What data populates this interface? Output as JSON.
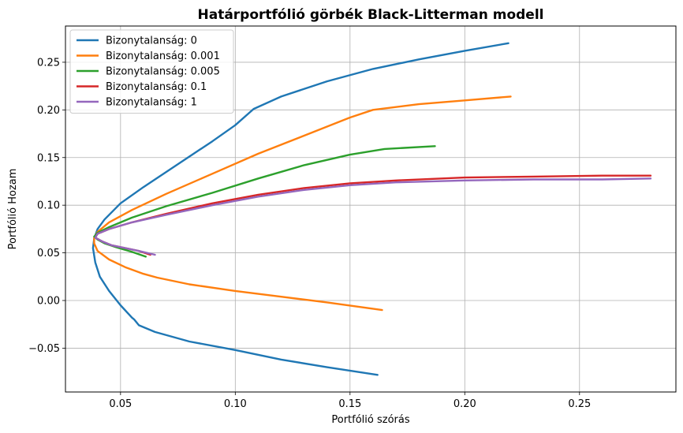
{
  "chart_data": {
    "type": "line",
    "title": "Határportfólió görbék Black-Litterman modell",
    "xlabel": "Portfólió szórás",
    "ylabel": "Portfólió Hozam",
    "xlim": [
      0.026,
      0.292
    ],
    "ylim": [
      -0.096,
      0.288
    ],
    "xticks": [
      {
        "value": 0.05,
        "label": "0.05"
      },
      {
        "value": 0.1,
        "label": "0.10"
      },
      {
        "value": 0.15,
        "label": "0.15"
      },
      {
        "value": 0.2,
        "label": "0.20"
      },
      {
        "value": 0.25,
        "label": "0.25"
      }
    ],
    "yticks": [
      {
        "value": -0.05,
        "label": "−0.05"
      },
      {
        "value": 0.0,
        "label": "0.00"
      },
      {
        "value": 0.05,
        "label": "0.05"
      },
      {
        "value": 0.1,
        "label": "0.10"
      },
      {
        "value": 0.15,
        "label": "0.15"
      },
      {
        "value": 0.2,
        "label": "0.20"
      },
      {
        "value": 0.25,
        "label": "0.25"
      }
    ],
    "grid": true,
    "legend_position": "top-left",
    "series": [
      {
        "name": "Bizonytalanság: 0",
        "color": "#1f77b4",
        "x": [
          0.162,
          0.14,
          0.12,
          0.1,
          0.08,
          0.065,
          0.058,
          0.056,
          0.055,
          0.05,
          0.045,
          0.041,
          0.039,
          0.038,
          0.0385,
          0.04,
          0.043,
          0.05,
          0.06,
          0.07,
          0.08,
          0.09,
          0.1,
          0.108,
          0.12,
          0.14,
          0.16,
          0.18,
          0.2,
          0.219
        ],
        "y": [
          -0.078,
          -0.07,
          -0.062,
          -0.052,
          -0.043,
          -0.033,
          -0.026,
          -0.02,
          -0.018,
          -0.005,
          0.01,
          0.025,
          0.04,
          0.055,
          0.065,
          0.075,
          0.085,
          0.102,
          0.119,
          0.135,
          0.151,
          0.167,
          0.184,
          0.201,
          0.214,
          0.23,
          0.243,
          0.253,
          0.262,
          0.27
        ]
      },
      {
        "name": "Bizonytalanság: 0.001",
        "color": "#ff7f0e",
        "x": [
          0.164,
          0.14,
          0.12,
          0.1,
          0.08,
          0.066,
          0.06,
          0.052,
          0.045,
          0.04,
          0.0385,
          0.0385,
          0.04,
          0.045,
          0.055,
          0.07,
          0.09,
          0.11,
          0.13,
          0.15,
          0.16,
          0.18,
          0.2,
          0.22
        ],
        "y": [
          -0.01,
          -0.002,
          0.004,
          0.01,
          0.017,
          0.024,
          0.028,
          0.035,
          0.043,
          0.052,
          0.06,
          0.066,
          0.072,
          0.082,
          0.095,
          0.112,
          0.133,
          0.154,
          0.173,
          0.192,
          0.2,
          0.206,
          0.21,
          0.214
        ]
      },
      {
        "name": "Bizonytalanság: 0.005",
        "color": "#2ca02c",
        "x": [
          0.061,
          0.055,
          0.048,
          0.043,
          0.04,
          0.0385,
          0.04,
          0.045,
          0.055,
          0.07,
          0.09,
          0.11,
          0.13,
          0.15,
          0.165,
          0.187
        ],
        "y": [
          0.046,
          0.051,
          0.056,
          0.06,
          0.064,
          0.067,
          0.071,
          0.077,
          0.087,
          0.099,
          0.113,
          0.128,
          0.142,
          0.153,
          0.159,
          0.162
        ]
      },
      {
        "name": "Bizonytalanság: 0.1",
        "color": "#d62728",
        "x": [
          0.063,
          0.058,
          0.052,
          0.046,
          0.042,
          0.039,
          0.04,
          0.045,
          0.055,
          0.07,
          0.09,
          0.11,
          0.13,
          0.15,
          0.17,
          0.2,
          0.23,
          0.26,
          0.281
        ],
        "y": [
          0.048,
          0.052,
          0.055,
          0.058,
          0.062,
          0.066,
          0.07,
          0.075,
          0.082,
          0.091,
          0.102,
          0.111,
          0.118,
          0.123,
          0.126,
          0.129,
          0.13,
          0.131,
          0.131
        ]
      },
      {
        "name": "Bizonytalanság: 1",
        "color": "#9467bd",
        "x": [
          0.065,
          0.058,
          0.052,
          0.046,
          0.042,
          0.039,
          0.04,
          0.045,
          0.055,
          0.07,
          0.09,
          0.11,
          0.13,
          0.15,
          0.17,
          0.2,
          0.23,
          0.26,
          0.281
        ],
        "y": [
          0.048,
          0.052,
          0.055,
          0.058,
          0.062,
          0.066,
          0.07,
          0.075,
          0.082,
          0.09,
          0.1,
          0.109,
          0.116,
          0.121,
          0.124,
          0.126,
          0.127,
          0.127,
          0.128
        ]
      }
    ]
  }
}
